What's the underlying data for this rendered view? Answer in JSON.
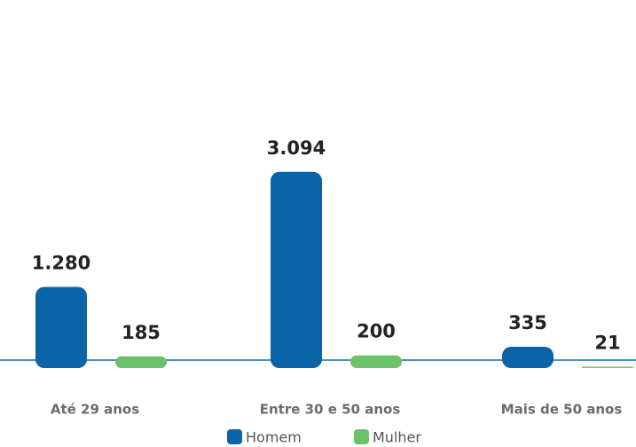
{
  "chart_data": {
    "type": "bar",
    "categories": [
      "Até 29 anos",
      "Entre 30 e 50 anos",
      "Mais de 50 anos"
    ],
    "series": [
      {
        "name": "Homem",
        "color": "#0b64a8",
        "values": [
          1280,
          3094,
          335
        ],
        "value_labels": [
          "1.280",
          "3.094",
          "335"
        ]
      },
      {
        "name": "Mulher",
        "color": "#6cc26a",
        "values": [
          185,
          200,
          21
        ],
        "value_labels": [
          "185",
          "200",
          "21"
        ]
      }
    ]
  }
}
